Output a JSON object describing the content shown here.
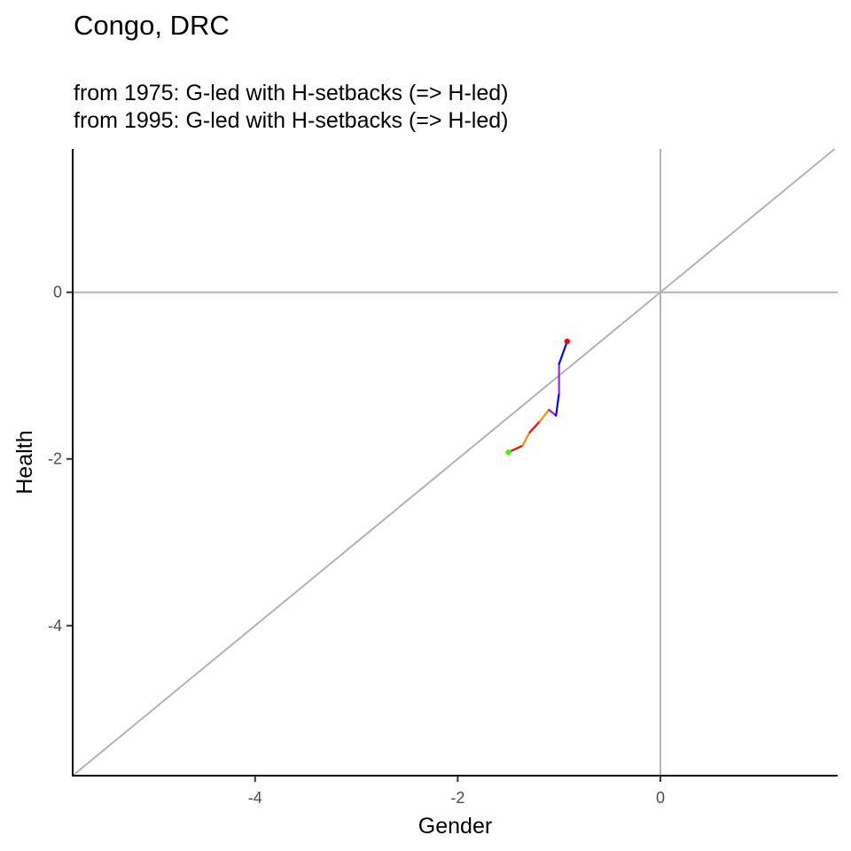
{
  "chart_data": {
    "type": "line",
    "title": "Congo, DRC",
    "subtitle_lines": [
      "from 1975:  G-led with H-setbacks (=> H-led)",
      "from 1995:  G-led with H-setbacks (=> H-led)"
    ],
    "xlabel": "Gender",
    "ylabel": "Health",
    "xlim": [
      -5.8,
      1.75
    ],
    "ylim": [
      -5.8,
      1.72
    ],
    "xticks": [
      -4,
      -2,
      0
    ],
    "yticks": [
      -4,
      -2,
      0
    ],
    "grid": false,
    "reference_lines": [
      {
        "type": "vline",
        "x": 0,
        "color": "#b3b3b3"
      },
      {
        "type": "hline",
        "y": 0,
        "color": "#b3b3b3"
      },
      {
        "type": "diagonal",
        "slope": 1,
        "intercept": 0,
        "color": "#b3b3b3"
      }
    ],
    "path_segments": [
      {
        "from": [
          -1.5,
          -1.92
        ],
        "to": [
          -1.36,
          -1.84
        ],
        "color": "#ff0000"
      },
      {
        "from": [
          -1.36,
          -1.84
        ],
        "to": [
          -1.29,
          -1.68
        ],
        "color": "#ff8c00"
      },
      {
        "from": [
          -1.29,
          -1.68
        ],
        "to": [
          -1.19,
          -1.55
        ],
        "color": "#ff0000"
      },
      {
        "from": [
          -1.19,
          -1.55
        ],
        "to": [
          -1.1,
          -1.41
        ],
        "color": "#ff8c00"
      },
      {
        "from": [
          -1.1,
          -1.41
        ],
        "to": [
          -1.03,
          -1.48
        ],
        "color": "#a020f0"
      },
      {
        "from": [
          -1.03,
          -1.48
        ],
        "to": [
          -1.0,
          -1.21
        ],
        "color": "#0000ff"
      },
      {
        "from": [
          -1.0,
          -1.21
        ],
        "to": [
          -1.0,
          -0.86
        ],
        "color": "#a020f0"
      },
      {
        "from": [
          -1.0,
          -0.86
        ],
        "to": [
          -0.92,
          -0.59
        ],
        "color": "#0000ff"
      }
    ],
    "start_point": {
      "x": -1.5,
      "y": -1.92,
      "color": "#33ff00"
    },
    "end_point": {
      "x": -0.92,
      "y": -0.59,
      "color": "#ff0000"
    }
  }
}
